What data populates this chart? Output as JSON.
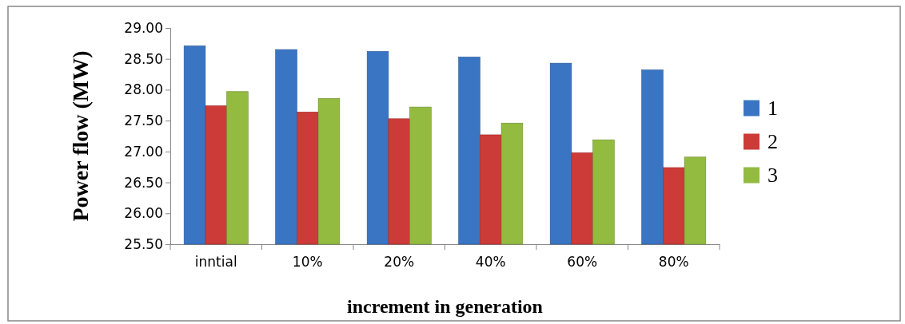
{
  "chart_data": {
    "type": "bar",
    "xlabel": "increment in generation",
    "ylabel": "Power flow (MW)",
    "categories": [
      "inntial",
      "10%",
      "20%",
      "40%",
      "60%",
      "80%"
    ],
    "series": [
      {
        "name": "1",
        "color": "#3a75c4",
        "values": [
          28.71,
          28.65,
          28.62,
          28.53,
          28.43,
          28.32
        ]
      },
      {
        "name": "2",
        "color": "#cc3b38",
        "values": [
          27.74,
          27.64,
          27.53,
          27.27,
          26.98,
          26.74
        ]
      },
      {
        "name": "3",
        "color": "#92bb40",
        "values": [
          27.97,
          27.86,
          27.72,
          27.46,
          27.19,
          26.91
        ]
      }
    ],
    "ylim": [
      25.5,
      29
    ],
    "yticks": [
      {
        "value": 25.5,
        "label": "25.50"
      },
      {
        "value": 26,
        "label": "26.00"
      },
      {
        "value": 26.5,
        "label": "26.50"
      },
      {
        "value": 27,
        "label": "27.00"
      },
      {
        "value": 27.5,
        "label": "27.50"
      },
      {
        "value": 28,
        "label": "28.00"
      },
      {
        "value": 28.5,
        "label": "28.50"
      },
      {
        "value": 29,
        "label": "29.00"
      }
    ],
    "grid": false,
    "legend": "right"
  }
}
